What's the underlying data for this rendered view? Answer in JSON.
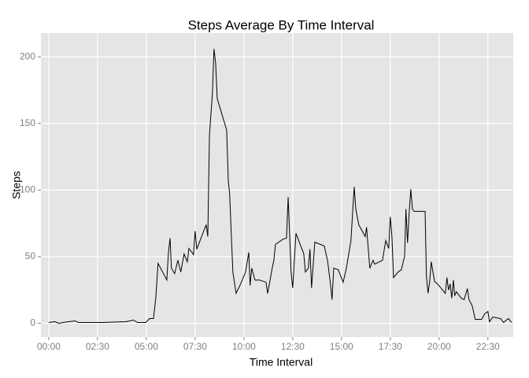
{
  "chart_data": {
    "type": "line",
    "title": "Steps Average By Time Interval",
    "x_label": "Time Interval",
    "y_label": "Steps",
    "x": [
      0,
      19,
      31,
      44,
      80,
      92,
      165,
      237,
      261,
      273,
      298,
      310,
      322,
      329,
      336,
      363,
      368,
      373,
      377,
      387,
      397,
      406,
      416,
      426,
      431,
      440,
      445,
      450,
      455,
      484,
      489,
      494,
      498,
      503,
      508,
      513,
      518,
      547,
      552,
      556,
      566,
      576,
      590,
      605,
      615,
      619,
      624,
      634,
      648,
      668,
      673,
      687,
      692,
      697,
      721,
      731,
      736,
      745,
      750,
      760,
      784,
      789,
      798,
      803,
      808,
      818,
      847,
      857,
      866,
      871,
      876,
      890,
      905,
      915,
      929,
      939,
      944,
      953,
      973,
      977,
      987,
      997,
      1002,
      1026,
      1036,
      1045,
      1050,
      1055,
      1060,
      1074,
      1084,
      1094,
      1098,
      1103,
      1108,
      1113,
      1118,
      1123,
      1157,
      1161,
      1166,
      1171,
      1176,
      1186,
      1195,
      1219,
      1224,
      1229,
      1234,
      1239,
      1244,
      1248,
      1253,
      1268,
      1277,
      1287,
      1292,
      1302,
      1311,
      1331,
      1340,
      1350,
      1355,
      1365,
      1389,
      1398,
      1413,
      1423
    ],
    "series": [
      {
        "name": "Steps",
        "color": "#000000",
        "values": [
          0.6,
          1.2,
          0,
          0.6,
          1.8,
          0.6,
          0.6,
          1.2,
          2.4,
          0.6,
          0.6,
          3.6,
          3.6,
          18.9,
          45.0,
          32.5,
          53.3,
          63.9,
          41.4,
          37.3,
          47.3,
          38.5,
          52.1,
          46.2,
          56.2,
          53.3,
          51.5,
          69.2,
          55.6,
          74.0,
          65.1,
          140.8,
          155.0,
          171.6,
          205.9,
          195.3,
          168.6,
          145.0,
          106.5,
          97.6,
          38.5,
          22.5,
          29.6,
          38.5,
          53.3,
          28.4,
          41.4,
          32.5,
          32.5,
          30.8,
          22.5,
          41.4,
          47.3,
          59.2,
          63.3,
          63.9,
          94.7,
          38.5,
          26.6,
          67.5,
          52.1,
          38.5,
          41.4,
          55.6,
          26.6,
          60.9,
          58.0,
          47.3,
          29.6,
          17.8,
          41.4,
          40.2,
          30.8,
          41.4,
          62.1,
          102.4,
          85.8,
          74.0,
          65.1,
          72.2,
          41.4,
          47.3,
          44.4,
          47.3,
          62.1,
          56.2,
          79.9,
          65.1,
          34.3,
          38.5,
          40.2,
          50.3,
          85.8,
          60.4,
          82.8,
          100.6,
          85.8,
          84.0,
          84.0,
          35.5,
          22.5,
          31.4,
          46.2,
          31.4,
          29.6,
          22.5,
          34.3,
          24.9,
          29.6,
          18.9,
          32.5,
          20.7,
          23.7,
          18.9,
          17.8,
          26.0,
          17.8,
          13.0,
          3.0,
          3.0,
          7.1,
          8.9,
          1.2,
          4.7,
          3.6,
          0.6,
          3.6,
          0.6
        ]
      }
    ],
    "xlim": [
      -24,
      1428
    ],
    "xticks": [
      {
        "value": 0,
        "label": "00:00"
      },
      {
        "value": 150,
        "label": "02:30"
      },
      {
        "value": 300,
        "label": "05:00"
      },
      {
        "value": 450,
        "label": "07:30"
      },
      {
        "value": 600,
        "label": "10:00"
      },
      {
        "value": 750,
        "label": "12:30"
      },
      {
        "value": 900,
        "label": "15:00"
      },
      {
        "value": 1050,
        "label": "17:30"
      },
      {
        "value": 1200,
        "label": "20:00"
      },
      {
        "value": 1350,
        "label": "22:30"
      }
    ],
    "ylim": [
      -10.3,
      217.8
    ],
    "yticks": [
      0,
      50,
      100,
      150,
      200
    ],
    "grid": true,
    "panel_color": "#e5e5e5",
    "grid_color": "#ffffff"
  }
}
